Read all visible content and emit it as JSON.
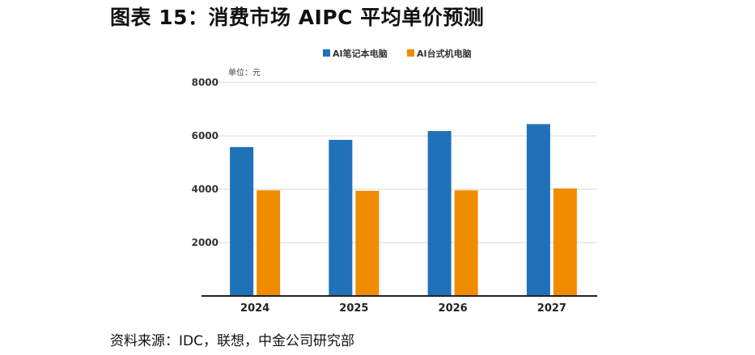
{
  "figure": {
    "title": "图表 15：消费市场 AIPC 平均单价预测",
    "source": "资料来源：IDC，联想，中金公司研究部"
  },
  "chart_data": {
    "type": "bar",
    "categories": [
      "2024",
      "2025",
      "2026",
      "2027"
    ],
    "series": [
      {
        "name": "AI笔记本电脑",
        "color": "#1f72b8",
        "values": [
          5580,
          5850,
          6180,
          6440
        ]
      },
      {
        "name": "AI台式机电脑",
        "color": "#f08c00",
        "values": [
          3960,
          3940,
          3960,
          4030
        ]
      }
    ],
    "unit_label": "单位：元",
    "ylim": [
      0,
      8000
    ],
    "yticks": [
      2000,
      4000,
      6000,
      8000
    ],
    "grid": true,
    "legend_position": "top"
  }
}
